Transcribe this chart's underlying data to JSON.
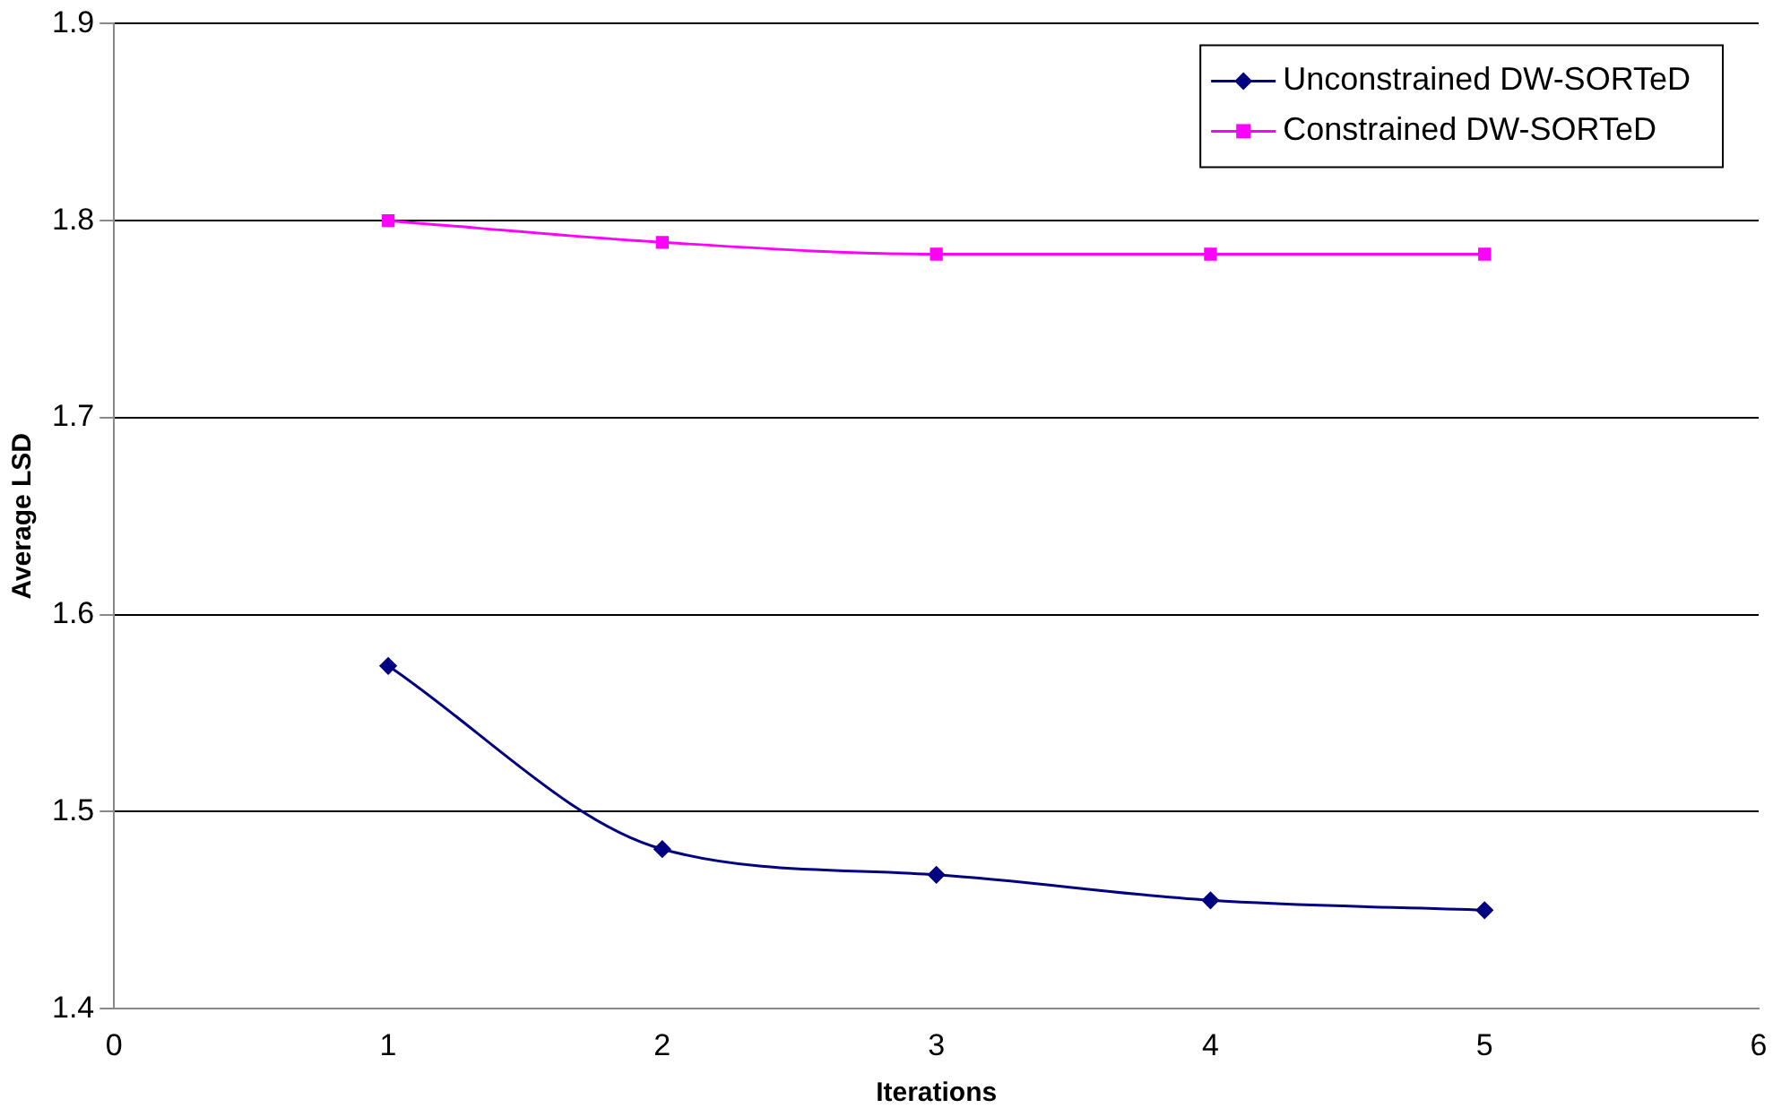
{
  "chart_data": {
    "type": "line",
    "xlabel": "Iterations",
    "ylabel": "Average LSD",
    "x": [
      1,
      2,
      3,
      4,
      5
    ],
    "series": [
      {
        "name": "Unconstrained DW-SORTeD",
        "color": "#000080",
        "marker": "diamond",
        "values": [
          1.574,
          1.481,
          1.468,
          1.455,
          1.45
        ]
      },
      {
        "name": "Constrained DW-SORTeD",
        "color": "#ff00ff",
        "marker": "square",
        "values": [
          1.8,
          1.789,
          1.783,
          1.783,
          1.783
        ]
      }
    ],
    "xlim": [
      0,
      6
    ],
    "xticks": [
      0,
      1,
      2,
      3,
      4,
      5,
      6
    ],
    "ylim": [
      1.4,
      1.9
    ],
    "yticks": [
      1.4,
      1.5,
      1.6,
      1.7,
      1.8,
      1.9
    ],
    "grid": "y",
    "legend": "top right"
  }
}
